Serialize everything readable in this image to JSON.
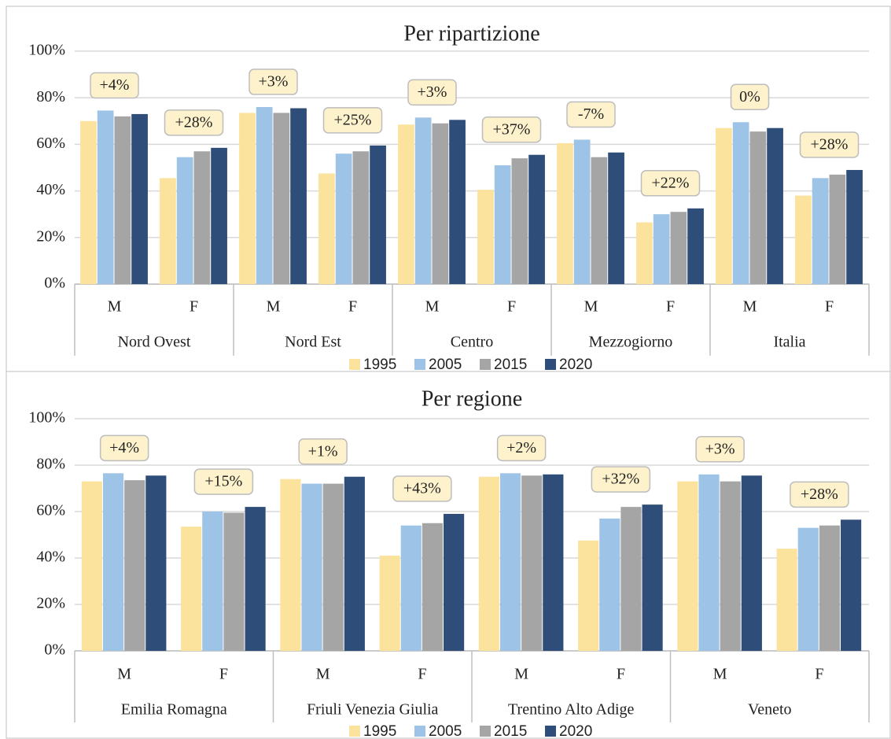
{
  "chart_data": [
    {
      "type": "bar",
      "title": "Per ripartizione",
      "groups": [
        "Nord Ovest",
        "Nord Est",
        "Centro",
        "Mezzogiorno",
        "Italia"
      ],
      "categories": [
        "M",
        "F",
        "M",
        "F",
        "M",
        "F",
        "M",
        "F",
        "M",
        "F"
      ],
      "annotations": [
        "+4%",
        "+28%",
        "+3%",
        "+25%",
        "+3%",
        "+37%",
        "-7%",
        "+22%",
        "0%",
        "+28%"
      ],
      "series": [
        {
          "name": "1995",
          "color": "#fbe39e",
          "values": [
            70,
            45.5,
            73.5,
            47.5,
            68.5,
            40.5,
            60.5,
            26.5,
            67,
            38
          ]
        },
        {
          "name": "2005",
          "color": "#9dc3e6",
          "values": [
            74.5,
            54.5,
            76,
            56,
            71.5,
            51,
            62,
            30,
            69.5,
            45.5
          ]
        },
        {
          "name": "2015",
          "color": "#a5a5a5",
          "values": [
            72,
            57,
            73.5,
            57,
            69,
            54,
            54.5,
            31,
            65.5,
            47
          ]
        },
        {
          "name": "2020",
          "color": "#2e4d78",
          "values": [
            73,
            58.5,
            75.5,
            59.5,
            70.5,
            55.5,
            56.5,
            32.5,
            67,
            49
          ]
        }
      ],
      "ylim": [
        0,
        100
      ],
      "yticks": [
        {
          "value": 0,
          "label": "0%"
        },
        {
          "value": 20,
          "label": "20%"
        },
        {
          "value": 40,
          "label": "40%"
        },
        {
          "value": 60,
          "label": "60%"
        },
        {
          "value": 80,
          "label": "80%"
        },
        {
          "value": 100,
          "label": "100%"
        }
      ],
      "grid": true,
      "legend": "bottom"
    },
    {
      "type": "bar",
      "title": "Per regione",
      "groups": [
        "Emilia Romagna",
        "Friuli Venezia Giulia",
        "Trentino Alto Adige",
        "Veneto"
      ],
      "categories": [
        "M",
        "F",
        "M",
        "F",
        "M",
        "F",
        "M",
        "F"
      ],
      "annotations": [
        "+4%",
        "+15%",
        "+1%",
        "+43%",
        "+2%",
        "+32%",
        "+3%",
        "+28%"
      ],
      "series": [
        {
          "name": "1995",
          "color": "#fbe39e",
          "values": [
            73,
            53.5,
            74,
            41,
            75,
            47.5,
            73,
            44
          ]
        },
        {
          "name": "2005",
          "color": "#9dc3e6",
          "values": [
            76.5,
            60,
            72,
            54,
            76.5,
            57,
            76,
            53
          ]
        },
        {
          "name": "2015",
          "color": "#a5a5a5",
          "values": [
            73.5,
            59.5,
            72,
            55,
            75.5,
            62,
            73,
            54
          ]
        },
        {
          "name": "2020",
          "color": "#2e4d78",
          "values": [
            75.5,
            62,
            75,
            59,
            76,
            63,
            75.5,
            56.5
          ]
        }
      ],
      "ylim": [
        0,
        100
      ],
      "yticks": [
        {
          "value": 0,
          "label": "0%"
        },
        {
          "value": 20,
          "label": "20%"
        },
        {
          "value": 40,
          "label": "40%"
        },
        {
          "value": 60,
          "label": "60%"
        },
        {
          "value": 80,
          "label": "80%"
        },
        {
          "value": 100,
          "label": "100%"
        }
      ],
      "grid": true,
      "legend": "bottom"
    }
  ]
}
